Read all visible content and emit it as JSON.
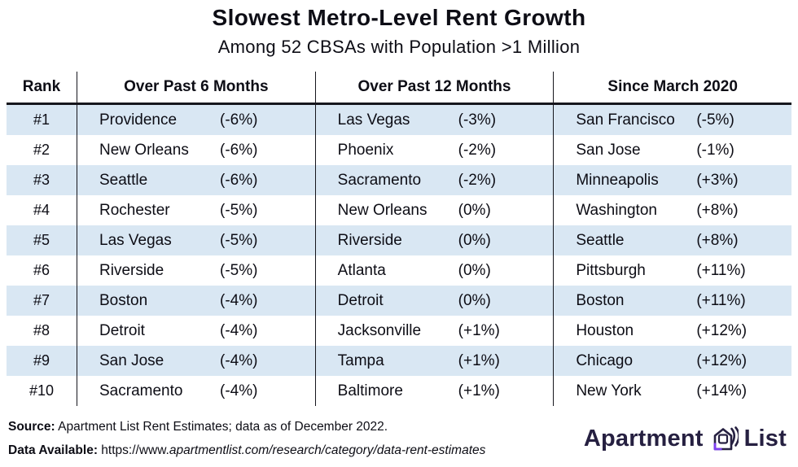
{
  "chart_data": {
    "type": "table",
    "title": "Slowest Metro-Level Rent Growth",
    "subtitle": "Among 52 CBSAs with Population >1 Million",
    "columns": [
      "Rank",
      "Over Past 6 Months",
      "Over Past 12 Months",
      "Since March 2020"
    ],
    "rows": [
      {
        "rank": "#1",
        "past6": {
          "city": "Providence",
          "pct": "(-6%)"
        },
        "past12": {
          "city": "Las Vegas",
          "pct": "(-3%)"
        },
        "since2020": {
          "city": "San Francisco",
          "pct": "(-5%)"
        }
      },
      {
        "rank": "#2",
        "past6": {
          "city": "New Orleans",
          "pct": "(-6%)"
        },
        "past12": {
          "city": "Phoenix",
          "pct": "(-2%)"
        },
        "since2020": {
          "city": "San Jose",
          "pct": "(-1%)"
        }
      },
      {
        "rank": "#3",
        "past6": {
          "city": "Seattle",
          "pct": "(-6%)"
        },
        "past12": {
          "city": "Sacramento",
          "pct": "(-2%)"
        },
        "since2020": {
          "city": "Minneapolis",
          "pct": "(+3%)"
        }
      },
      {
        "rank": "#4",
        "past6": {
          "city": "Rochester",
          "pct": "(-5%)"
        },
        "past12": {
          "city": "New Orleans",
          "pct": "(0%)"
        },
        "since2020": {
          "city": "Washington",
          "pct": "(+8%)"
        }
      },
      {
        "rank": "#5",
        "past6": {
          "city": "Las Vegas",
          "pct": "(-5%)"
        },
        "past12": {
          "city": "Riverside",
          "pct": "(0%)"
        },
        "since2020": {
          "city": "Seattle",
          "pct": "(+8%)"
        }
      },
      {
        "rank": "#6",
        "past6": {
          "city": "Riverside",
          "pct": "(-5%)"
        },
        "past12": {
          "city": "Atlanta",
          "pct": "(0%)"
        },
        "since2020": {
          "city": "Pittsburgh",
          "pct": "(+11%)"
        }
      },
      {
        "rank": "#7",
        "past6": {
          "city": "Boston",
          "pct": "(-4%)"
        },
        "past12": {
          "city": "Detroit",
          "pct": "(0%)"
        },
        "since2020": {
          "city": "Boston",
          "pct": "(+11%)"
        }
      },
      {
        "rank": "#8",
        "past6": {
          "city": "Detroit",
          "pct": "(-4%)"
        },
        "past12": {
          "city": "Jacksonville",
          "pct": "(+1%)"
        },
        "since2020": {
          "city": "Houston",
          "pct": "(+12%)"
        }
      },
      {
        "rank": "#9",
        "past6": {
          "city": "San Jose",
          "pct": "(-4%)"
        },
        "past12": {
          "city": "Tampa",
          "pct": "(+1%)"
        },
        "since2020": {
          "city": "Chicago",
          "pct": "(+12%)"
        }
      },
      {
        "rank": "#10",
        "past6": {
          "city": "Sacramento",
          "pct": "(-4%)"
        },
        "past12": {
          "city": "Baltimore",
          "pct": "(+1%)"
        },
        "since2020": {
          "city": "New York",
          "pct": "(+14%)"
        }
      }
    ],
    "layout_hints": {
      "striped_rows": true,
      "stripe_on": "odd rows (#1, #3, #5, #7, #9)"
    }
  },
  "footer": {
    "source_label": "Source:",
    "source_text": "Apartment List Rent Estimates; data as of December 2022.",
    "data_label": "Data Available:",
    "url_prefix": "https://www.",
    "url_rest": "apartmentlist.com/research/category/data-rent-estimates",
    "logo": {
      "word_left": "Apartment",
      "word_right": "List",
      "icon": "apartment-list-house-icon"
    }
  },
  "colors": {
    "row_stripe_blue": "#d9e7f3",
    "divider_dark": "#16161d",
    "text": "#0d0d15",
    "logo_navy": "#262041",
    "logo_purple": "#7d3ff0"
  }
}
